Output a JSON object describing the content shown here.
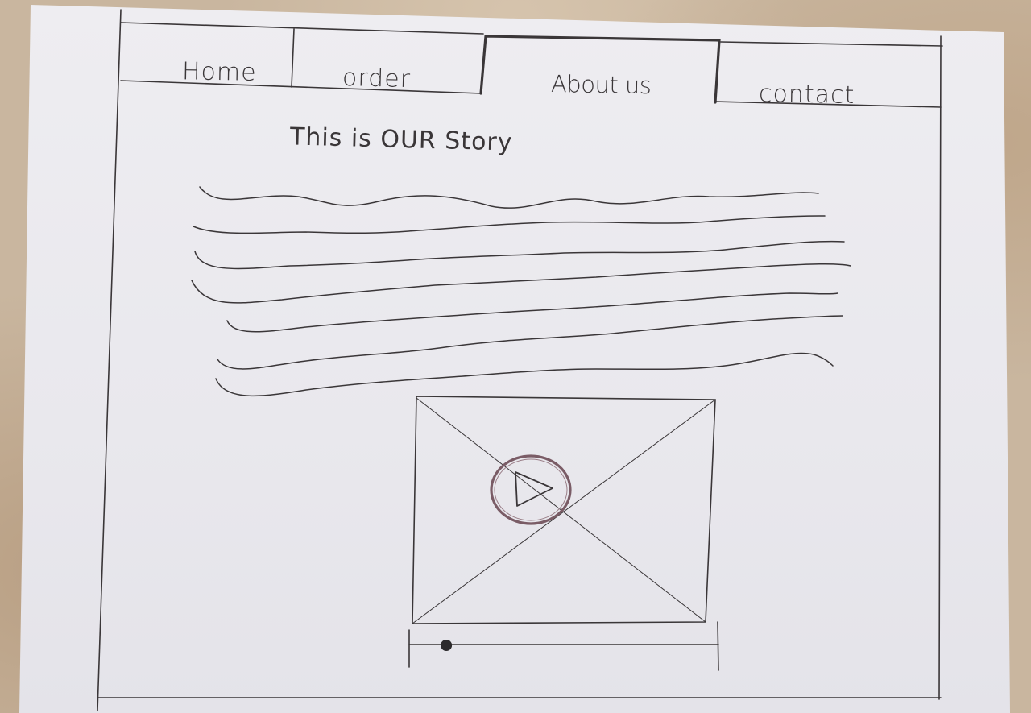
{
  "nav": {
    "items": [
      {
        "label": "Home",
        "active": false
      },
      {
        "label": "order",
        "active": false
      },
      {
        "label": "About us",
        "active": true
      },
      {
        "label": "contact",
        "active": false
      }
    ]
  },
  "main": {
    "title": "This is OUR Story"
  },
  "video": {
    "progress": 0.12
  },
  "colors": {
    "ink": "#3a3638",
    "play_button": "#7a5c66",
    "paper": "#ecebf0"
  }
}
